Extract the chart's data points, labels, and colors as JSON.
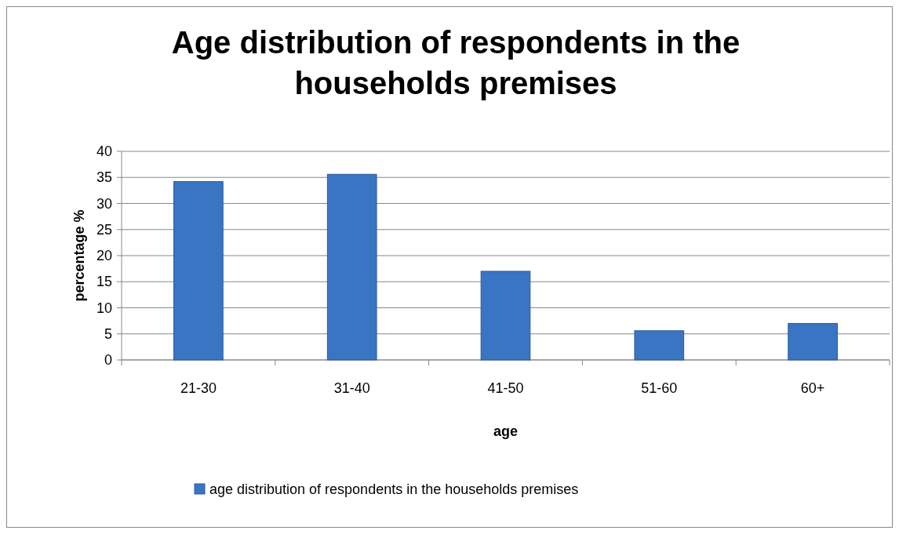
{
  "chart_data": {
    "type": "bar",
    "title": "Age distribution of respondents in the households premises",
    "xlabel": "age",
    "ylabel": "percentage %",
    "categories": [
      "21-30",
      "31-40",
      "41-50",
      "51-60",
      "60+"
    ],
    "series": [
      {
        "name": "age distribution of respondents in the households premises",
        "color": "#3a75c4",
        "values": [
          34.2,
          35.6,
          17.0,
          5.6,
          7.0
        ]
      }
    ],
    "ylim": [
      0,
      40
    ],
    "yticks": [
      0,
      5,
      10,
      15,
      20,
      25,
      30,
      35,
      40
    ],
    "grid": "y",
    "legend": "bottom"
  }
}
